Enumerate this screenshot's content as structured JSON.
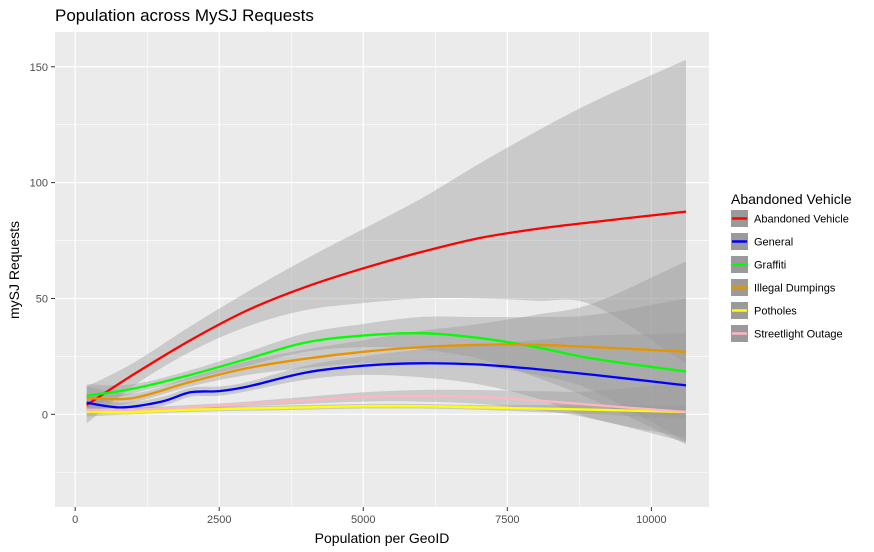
{
  "chart_data": {
    "type": "line",
    "title": "Population across MySJ Requests",
    "xlabel": "Population per GeoID",
    "ylabel": "mySJ Requests",
    "xlim": [
      -350,
      11000
    ],
    "ylim": [
      -40,
      165
    ],
    "x_ticks": [
      0,
      2500,
      5000,
      7500,
      10000
    ],
    "y_ticks": [
      0,
      50,
      100,
      150
    ],
    "grid": true,
    "legend": {
      "title": "Abandoned Vehicle",
      "placement": "right"
    },
    "series": [
      {
        "name": "Abandoned Vehicle",
        "color": "#ff0000",
        "x": [
          200,
          1000,
          2000,
          3000,
          4000,
          5000,
          6000,
          7000,
          8000,
          9000,
          10600
        ],
        "values": [
          4,
          17,
          32,
          45,
          55,
          63,
          70,
          76,
          80,
          83,
          87.5
        ],
        "lower": [
          -4,
          12,
          27,
          38,
          45,
          48,
          50,
          50,
          49,
          47,
          22
        ],
        "upper": [
          12,
          22,
          38,
          53,
          67,
          80,
          93,
          108,
          122,
          135,
          153
        ]
      },
      {
        "name": "General",
        "color": "#0000ff",
        "x": [
          200,
          800,
          1500,
          2000,
          2500,
          3000,
          4000,
          5000,
          6000,
          7000,
          8000,
          9000,
          10600
        ],
        "values": [
          5,
          3,
          5.5,
          9.5,
          10,
          12,
          18,
          21,
          22,
          21.5,
          19.5,
          17,
          12.5
        ],
        "lower": [
          1,
          1,
          3.5,
          7.5,
          8,
          10,
          15,
          17,
          16,
          13,
          7,
          -2,
          -10
        ],
        "upper": [
          9,
          5,
          7.5,
          11.5,
          12,
          14,
          21,
          25,
          28,
          30,
          32,
          34,
          35
        ]
      },
      {
        "name": "Graffiti",
        "color": "#00ff00",
        "x": [
          200,
          1000,
          2000,
          3000,
          4000,
          5000,
          6000,
          7000,
          8000,
          9000,
          10600
        ],
        "values": [
          8,
          11,
          17,
          24,
          31,
          34,
          35,
          33,
          29,
          24,
          18.5
        ],
        "lower": [
          3,
          9,
          15,
          21,
          27,
          29,
          28,
          24,
          16,
          6,
          -13
        ],
        "upper": [
          13,
          13,
          19,
          27,
          35,
          39,
          42,
          42,
          42,
          43,
          50
        ]
      },
      {
        "name": "Illegal Dumpings",
        "color": "#e69500",
        "x": [
          200,
          1000,
          2000,
          3000,
          4000,
          5000,
          6000,
          7000,
          8000,
          9000,
          10600
        ],
        "values": [
          7,
          7,
          14,
          20,
          24,
          27,
          29,
          30,
          30,
          29,
          27
        ],
        "lower": [
          2,
          5,
          12,
          17,
          20,
          22,
          22,
          21,
          17,
          10,
          -12
        ],
        "upper": [
          12,
          9,
          16,
          23,
          28,
          32,
          36,
          39,
          43,
          48,
          66
        ]
      },
      {
        "name": "Potholes",
        "color": "#ffff00",
        "x": [
          200,
          1000,
          2000,
          3000,
          4000,
          5000,
          6000,
          7000,
          8000,
          9000,
          10600
        ],
        "values": [
          1,
          1,
          2,
          2.5,
          3,
          3.5,
          3.5,
          3,
          2.5,
          2,
          1
        ],
        "lower": [
          -1,
          0,
          1,
          1.5,
          2,
          2.5,
          2.5,
          2,
          1,
          0,
          -2
        ],
        "upper": [
          3,
          2,
          3,
          3.5,
          4,
          4.5,
          4.5,
          4,
          4,
          4,
          4
        ]
      },
      {
        "name": "Streetlight Outage",
        "color": "#ffb6c1",
        "x": [
          200,
          1000,
          2000,
          3000,
          4000,
          5000,
          6000,
          7000,
          8000,
          9000,
          10600
        ],
        "values": [
          2,
          2,
          3,
          4.5,
          6,
          7.5,
          8,
          7.5,
          6,
          4,
          1
        ],
        "lower": [
          0,
          1,
          2,
          3.5,
          4.5,
          5.5,
          5.5,
          4.5,
          2,
          -2,
          -12
        ],
        "upper": [
          4,
          3,
          4,
          5.5,
          7.5,
          9.5,
          10.5,
          10.5,
          10,
          10,
          14
        ]
      }
    ]
  }
}
